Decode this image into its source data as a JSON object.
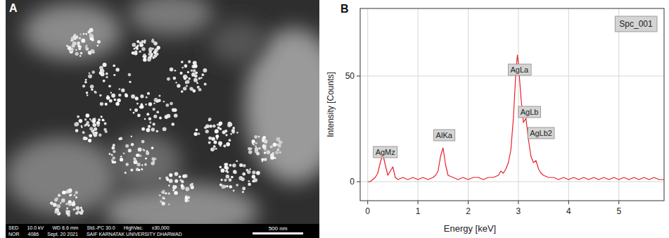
{
  "chart_data": {
    "type": "line",
    "title": "Spc_001",
    "panel_label": "B",
    "x_label": "Energy [keV]",
    "y_label": "Intensity [Counts]",
    "x": [
      0,
      0.05,
      0.1,
      0.15,
      0.2,
      0.25,
      0.3,
      0.35,
      0.4,
      0.45,
      0.5,
      0.55,
      0.6,
      0.7,
      0.8,
      0.9,
      1.0,
      1.1,
      1.2,
      1.3,
      1.35,
      1.4,
      1.45,
      1.5,
      1.55,
      1.6,
      1.7,
      1.8,
      1.9,
      2.0,
      2.1,
      2.2,
      2.3,
      2.4,
      2.5,
      2.6,
      2.65,
      2.7,
      2.75,
      2.8,
      2.85,
      2.9,
      2.95,
      2.98,
      3.0,
      3.05,
      3.1,
      3.15,
      3.2,
      3.25,
      3.3,
      3.35,
      3.4,
      3.45,
      3.5,
      3.6,
      3.7,
      3.8,
      3.9,
      4.0,
      4.1,
      4.2,
      4.3,
      4.4,
      4.5,
      4.6,
      4.7,
      4.8,
      4.9,
      5.0,
      5.1,
      5.2,
      5.3,
      5.4,
      5.5,
      5.6,
      5.7,
      5.8,
      5.9
    ],
    "values": [
      0,
      0,
      1,
      2,
      4,
      9,
      13,
      8,
      3,
      5,
      7,
      2,
      1,
      2,
      1,
      2,
      1,
      2,
      1,
      2,
      3,
      5,
      12,
      16,
      8,
      3,
      2,
      1,
      2,
      1,
      2,
      2,
      1,
      2,
      2,
      3,
      5,
      4,
      6,
      9,
      15,
      30,
      52,
      60,
      56,
      40,
      28,
      30,
      20,
      12,
      9,
      10,
      6,
      4,
      3,
      2,
      2,
      1,
      2,
      1,
      2,
      1,
      2,
      1,
      2,
      1,
      2,
      1,
      2,
      1,
      2,
      1,
      2,
      1,
      2,
      1,
      2,
      1,
      1
    ],
    "color": "#e8202a",
    "xlim": [
      -0.15,
      5.9
    ],
    "xticks": [
      0,
      1,
      2,
      3,
      4,
      5
    ],
    "ylim": [
      -9,
      82
    ],
    "yticks": [
      0,
      50
    ],
    "grid": true,
    "annotations": [
      {
        "text": "AgMz",
        "x": 0.35,
        "y": 14
      },
      {
        "text": "AlKa",
        "x": 1.52,
        "y": 22
      },
      {
        "text": "AgLa",
        "x": 3.02,
        "y": 53
      },
      {
        "text": "AgLb",
        "x": 3.22,
        "y": 33
      },
      {
        "text": "AgLb2",
        "x": 3.45,
        "y": 23
      }
    ]
  },
  "sem_image": {
    "panel_label": "A",
    "info_lines": [
      [
        "SED",
        "10.0 kV",
        "WD 8.6 mm",
        "Std.-PC 30.0",
        "HighVac.",
        "x30,000"
      ],
      [
        "NOR",
        "4086",
        "Sept. 20 2021",
        "SAIF KARNATAK UNIVERSITY DHARWAD"
      ]
    ],
    "scale_bar": "500 nm"
  }
}
